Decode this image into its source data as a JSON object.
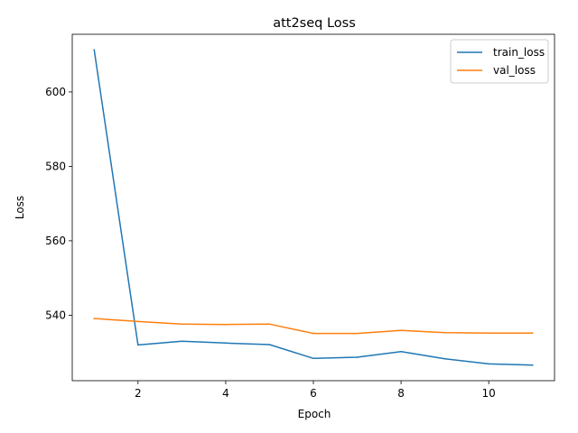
{
  "chart_data": {
    "type": "line",
    "title": "att2seq Loss",
    "xlabel": "Epoch",
    "ylabel": "Loss",
    "x": [
      1,
      2,
      3,
      4,
      5,
      6,
      7,
      8,
      9,
      10,
      11
    ],
    "series": [
      {
        "name": "train_loss",
        "color": "#1f77b4",
        "values": [
          611.3,
          532.0,
          533.0,
          532.5,
          532.1,
          528.4,
          528.7,
          530.2,
          528.3,
          526.9,
          526.6
        ]
      },
      {
        "name": "val_loss",
        "color": "#ff7f0e",
        "values": [
          539.1,
          538.3,
          537.6,
          537.5,
          537.6,
          535.1,
          535.1,
          535.9,
          535.3,
          535.2,
          535.2
        ]
      }
    ],
    "xlim": [
      0.5,
      11.5
    ],
    "ylim": [
      522.4,
      615.5
    ],
    "xticks": [
      2,
      4,
      6,
      8,
      10
    ],
    "yticks": [
      540,
      560,
      580,
      600
    ],
    "grid": false,
    "legend_position": "top-right"
  }
}
